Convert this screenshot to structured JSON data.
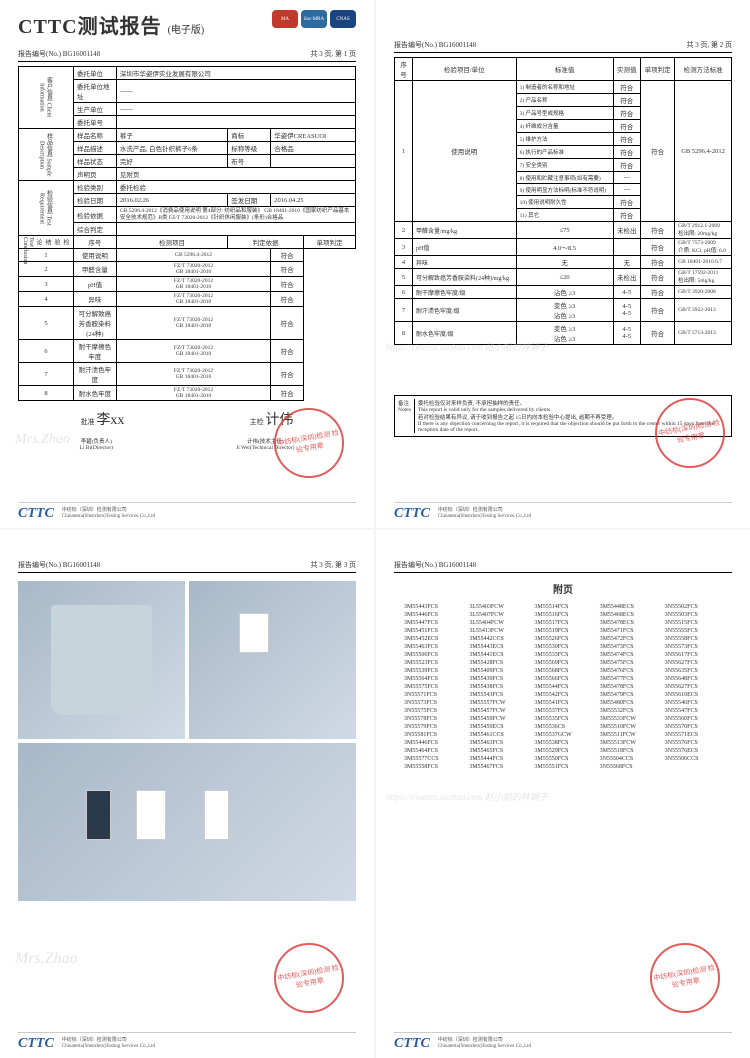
{
  "report": {
    "main_title": "CTTC测试报告",
    "sub_title": "(电子版)",
    "report_no_label": "报告编号(No.)",
    "report_no": "BG16001148",
    "page1_info": "共 3 页, 第 1 页",
    "page2_info": "共 3 页, 第 2 页",
    "page3_info": "共 3 页, 第 3 页"
  },
  "logos": {
    "l1_bg": "#c0392b",
    "l2_bg": "#2c6aa0",
    "l3_bg": "#1a4480",
    "l1": "MA",
    "l2": "ilac-MRA",
    "l3": "CNAS"
  },
  "section_labels": {
    "client": "客户信息\nClient\nInformation",
    "sample": "样品信息\nSample\nDescription",
    "test": "检验信息\nTest\nRequirement",
    "conclusion": "检验结论\nTest Conclusion"
  },
  "client": {
    "r1k": "委托单位",
    "r1v": "深圳市华姿伊实业发展有限公司",
    "r2k": "委托单位地址",
    "r2v": "------",
    "r3k": "生产单位",
    "r3v": "------",
    "r4k": "委托单号",
    "r4v": ""
  },
  "sample": {
    "r1k": "样品名称",
    "r1v": "裤子",
    "r1k2": "商标",
    "r1v2": "华姿伊CREASUOI",
    "r2k": "样品描述",
    "r2v": "水洗产品, 白色针织裤子6条",
    "r2k2": "标称等级",
    "r2v2": "合格品",
    "r3k": "样品状态",
    "r3v": "完好",
    "r3k2": "布号",
    "r3v2": "",
    "r4k": "声明页",
    "r4v": "见附页"
  },
  "test": {
    "r1k": "检验类别",
    "r1v": "委托检验",
    "r2k": "检验日期",
    "r2v": "2016.02.26",
    "r2k2": "签发日期",
    "r2v2": "2016.04.25",
    "r3k": "检验依据",
    "r3v": "GB 5296.4-2012《消费品使用说明 第4部分: 纺织品和服装》\nGB 18401-2010《国家纺织产品基本安全技术规范》B类\nFZ/T 73020-2012《针织休闲服装》(条形)合格品",
    "r4k": "综合判定",
    "r4v": ""
  },
  "conclusion_head": {
    "c1": "序号",
    "c2": "检测项目",
    "c3": "判定依据",
    "c4": "单项判定"
  },
  "conclusion_rows": [
    {
      "n": "1",
      "item": "使用说明",
      "basis": "GB 5296.4-2012",
      "res": "符合"
    },
    {
      "n": "2",
      "item": "甲醛含量",
      "basis": "FZ/T 73020-2012\nGB 18401-2010",
      "res": "符合"
    },
    {
      "n": "3",
      "item": "pH值",
      "basis": "FZ/T 73020-2012\nGB 18401-2010",
      "res": "符合"
    },
    {
      "n": "4",
      "item": "异味",
      "basis": "FZ/T 73020-2012\nGB 18401-2010",
      "res": "符合"
    },
    {
      "n": "5",
      "item": "可分解致癌芳香胺染料\n(24种)",
      "basis": "FZ/T 73020-2012\nGB 18401-2010",
      "res": "符合"
    },
    {
      "n": "6",
      "item": "耐干摩擦色牢度",
      "basis": "FZ/T 73020-2012\nGB 18401-2010",
      "res": "符合"
    },
    {
      "n": "7",
      "item": "耐汗渍色牢度",
      "basis": "FZ/T 73020-2012\nGB 18401-2010",
      "res": "符合"
    },
    {
      "n": "8",
      "item": "耐水色牢度",
      "basis": "FZ/T 73020-2012\nGB 18401-2010",
      "res": "符合"
    }
  ],
  "sig": {
    "approve_k": "批准",
    "approve_v": "李xx",
    "reviewer_k": "主检",
    "reviewer_v": "计伟",
    "sub1": "李碧(负责人)\nLi Bi(Director)",
    "sub2": "计伟(技术主任)\nJi Wei(Technical Director)"
  },
  "p2head": {
    "c1": "序号",
    "c2": "检验项目/单位",
    "c3": "标准值",
    "c4": "实测值",
    "c5": "单项判定",
    "c6": "检测方法标准"
  },
  "p2_block1_label": "使用说明",
  "p2_block1": [
    {
      "k": "1) 制造者的名称和地址",
      "v": "符合"
    },
    {
      "k": "2) 产品名称",
      "v": "符合"
    },
    {
      "k": "3) 产品号型或规格",
      "v": "符合"
    },
    {
      "k": "4) 纤维成分含量",
      "v": "符合"
    },
    {
      "k": "5) 维护方法",
      "v": "符合"
    },
    {
      "k": "6) 执行的产品标准",
      "v": "符合"
    },
    {
      "k": "7) 安全类别",
      "v": "符合"
    },
    {
      "k": "8) 使用和贮藏注意事项(如有需要)",
      "v": "---"
    },
    {
      "k": "9) 使用明显方法标明(标准不符说明)",
      "v": "---"
    },
    {
      "k": "10) 使用说明耐久性",
      "v": "符合"
    },
    {
      "k": "11) 其它",
      "v": "符合"
    }
  ],
  "p2_block1_res": "符合",
  "p2_block1_std": "GB 5296.4-2012",
  "p2_rows": [
    {
      "n": "2",
      "item": "甲醛含量/mg/kg",
      "std": "≤75",
      "val": "未检出",
      "res": "符合",
      "method": "GB/T 2912.1-2009\n检出限: 20mg/kg"
    },
    {
      "n": "3",
      "item": "pH值",
      "std": "4.0～8.5",
      "val": "",
      "res": "符合",
      "method": "GB/T 7573-2009\n介质: KCl, pH值: 6.0"
    },
    {
      "n": "4",
      "item": "异味",
      "std": "无",
      "val": "无",
      "res": "符合",
      "method": "GB 18401-2010 6.7"
    },
    {
      "n": "5",
      "item": "可分解致癌芳香胺染料(24种)/mg/kg",
      "std": "≤20",
      "val": "未检出",
      "res": "符合",
      "method": "GB/T 17592-2011\n检出限: 5mg/kg"
    },
    {
      "n": "6",
      "item": "耐干摩擦色牢度/级",
      "std": "沾色  ≥3",
      "val": "4-5",
      "res": "符合",
      "method": "GB/T 3920-2008"
    },
    {
      "n": "7",
      "item": "耐汗渍色牢度/级",
      "std": "变色  ≥3\n沾色  ≥3",
      "val": "4-5\n4-5",
      "res": "符合",
      "method": "GB/T 3922-2013"
    },
    {
      "n": "8",
      "item": "耐水色牢度/级",
      "std": "变色  ≥3\n沾色  ≥3",
      "val": "4-5\n4-5",
      "res": "符合",
      "method": "GB/T 5713-2013"
    }
  ],
  "notes": {
    "label": "备注\nNotes",
    "text": "委托检验仅对来样负责, 不承担抽样的责任。\nThis report is valid only for the samples delivered by clients.\n若对检验结果有异议, 请于收到报告之起 15日内向本检验中心提出, 逾期不再受理。\nIf there is any objection concerning the report, it is required that the objection should be put forth to the center within 15 days from the reception date of the report."
  },
  "appendix_title": "附页",
  "codes": [
    "3M55443FCS",
    "3L55403FCW",
    "3M55514FCS",
    "3M55448ECS",
    "3N55502FCS",
    "3M55446FCS",
    "3L55407FCW",
    "3M55516FCS",
    "3M55468ECS",
    "3N55503FCS",
    "3M55447FCS",
    "3L55404FCW",
    "3M55517FCS",
    "3M55478ECS",
    "3N55515FCS",
    "3M55451FCS",
    "3L55413FCW",
    "3M55519FCS",
    "3M55471FCS",
    "3N55555FCS",
    "3M55452ECS",
    "3M55442CCS",
    "3M55526FCS",
    "3M55472FCS",
    "3N55558FCS",
    "3M55463FCS",
    "3M55443ECS",
    "3M55530FCS",
    "3M55473FCS",
    "3N55573FCS",
    "3M55506FCS",
    "3M55441ECS",
    "3M55533FCS",
    "3M55474FCS",
    "3N55617FCS",
    "3M55523FCS",
    "3M55428FCS",
    "3M55569FCS",
    "3M55475FCS",
    "3N55627FCS",
    "3M55539FCS",
    "3M55409FCS",
    "3M55568FCS",
    "3M55476FCS",
    "3N55635FCS",
    "3M55564FCS",
    "3M55439FCS",
    "3M55566FCS",
    "3M55477FCS",
    "3N55648FCS",
    "3M55575FCS",
    "3M55438FCS",
    "3M55544FCS",
    "3M55478FCS",
    "3N55627FCS",
    "3N55571FCS",
    "3M55543FCS",
    "3M55542FCS",
    "3M55479FCS",
    "3N55610ECS",
    "3N55573FCS",
    "3M55557FCW",
    "3M55541FCS",
    "3M55480FCS",
    "3N55546FCS",
    "3N55575FCS",
    "3M55457FCW",
    "3M55537FCS",
    "3M55532FCS",
    "3N55547FCS",
    "3N55578FCS",
    "3M55459FCW",
    "3M55535FCS",
    "3M55533FCW",
    "3N55560FCS",
    "3N55579FCS",
    "3M55459ECS",
    "3M55536CS",
    "3M55510FCW",
    "3N55570FCS",
    "3N55581FCS",
    "3M55461CCS",
    "3M55537GCW",
    "3M55511FCW",
    "3N55571ECS",
    "3M55446FCS",
    "3M55463FCS",
    "3M55538FCS",
    "3M55513FCW",
    "3N55576FCS",
    "3M55464FCS",
    "3M55465FCS",
    "3M55529FCS",
    "3M55518FCS",
    "3N55576ECS",
    "3M55577CCS",
    "3M55444FCS",
    "3M55550FCS",
    "3N55504CCS",
    "3N55506CCS",
    "3M55558FCS",
    "3M55467FCS",
    "3M55551FCS",
    "3N55568FCS",
    ""
  ],
  "stamp_text": "中纺标(深圳)检测\n检验专用章",
  "stamp_color": "#d33",
  "footer": {
    "logo": "CTTC",
    "company": "中纺标（深圳）检测有限公司",
    "company_en": "Chinatesta(Shenzhen)Testing Services Co.,Ltd"
  },
  "watermarks": {
    "w1": "Mrs.Zhao",
    "w2": "https://rineeee.taobao.com 赵小姐的林铺子"
  }
}
